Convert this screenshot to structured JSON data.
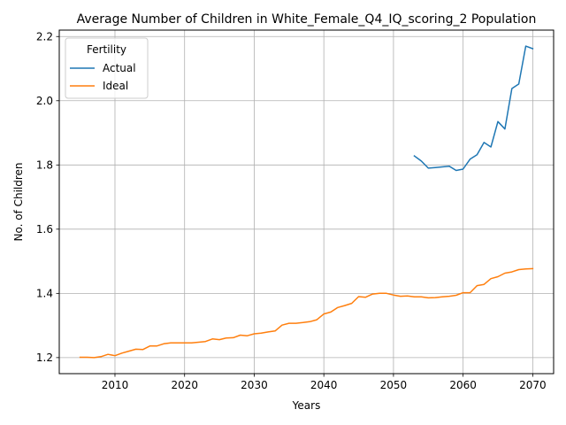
{
  "chart_data": {
    "type": "line",
    "title": "Average Number of Children in White_Female_Q4_IQ_scoring_2 Population",
    "xlabel": "Years",
    "ylabel": "No. of Children",
    "xlim": [
      2002,
      2073
    ],
    "ylim": [
      1.15,
      2.22
    ],
    "xticks": [
      2010,
      2020,
      2030,
      2040,
      2050,
      2060,
      2070
    ],
    "yticks": [
      1.2,
      1.4,
      1.6,
      1.8,
      2.0,
      2.2
    ],
    "xtick_labels": [
      "2010",
      "2020",
      "2030",
      "2040",
      "2050",
      "2060",
      "2070"
    ],
    "ytick_labels": [
      "1.2",
      "1.4",
      "1.6",
      "1.8",
      "2.0",
      "2.2"
    ],
    "grid": true,
    "legend": {
      "title": "Fertility",
      "placement": "top-left"
    },
    "series": [
      {
        "name": "Actual",
        "color": "#1f77b4",
        "x": [
          2053,
          2054,
          2055,
          2056,
          2057,
          2058,
          2059,
          2060,
          2061,
          2062,
          2063,
          2064,
          2065,
          2066,
          2067,
          2068,
          2069,
          2070
        ],
        "y": [
          1.828,
          1.812,
          1.79,
          1.792,
          1.794,
          1.796,
          1.783,
          1.787,
          1.818,
          1.832,
          1.87,
          1.856,
          1.935,
          1.912,
          2.038,
          2.052,
          2.17,
          2.162
        ]
      },
      {
        "name": "Ideal",
        "color": "#ff7f0e",
        "x": [
          2005,
          2006,
          2007,
          2008,
          2009,
          2010,
          2011,
          2012,
          2013,
          2014,
          2015,
          2016,
          2017,
          2018,
          2019,
          2020,
          2021,
          2022,
          2023,
          2024,
          2025,
          2026,
          2027,
          2028,
          2029,
          2030,
          2031,
          2032,
          2033,
          2034,
          2035,
          2036,
          2037,
          2038,
          2039,
          2040,
          2041,
          2042,
          2043,
          2044,
          2045,
          2046,
          2047,
          2048,
          2049,
          2050,
          2051,
          2052,
          2053,
          2054,
          2055,
          2056,
          2057,
          2058,
          2059,
          2060,
          2061,
          2062,
          2063,
          2064,
          2065,
          2066,
          2067,
          2068,
          2069,
          2070
        ],
        "y": [
          1.201,
          1.201,
          1.2,
          1.203,
          1.21,
          1.206,
          1.214,
          1.22,
          1.226,
          1.225,
          1.236,
          1.236,
          1.243,
          1.246,
          1.246,
          1.246,
          1.246,
          1.248,
          1.25,
          1.258,
          1.256,
          1.261,
          1.262,
          1.27,
          1.268,
          1.274,
          1.276,
          1.28,
          1.283,
          1.301,
          1.307,
          1.307,
          1.309,
          1.312,
          1.318,
          1.336,
          1.342,
          1.356,
          1.362,
          1.369,
          1.39,
          1.388,
          1.398,
          1.4,
          1.4,
          1.395,
          1.391,
          1.392,
          1.389,
          1.389,
          1.386,
          1.387,
          1.389,
          1.391,
          1.394,
          1.402,
          1.402,
          1.424,
          1.428,
          1.446,
          1.452,
          1.463,
          1.467,
          1.474,
          1.476,
          1.477
        ]
      }
    ]
  }
}
